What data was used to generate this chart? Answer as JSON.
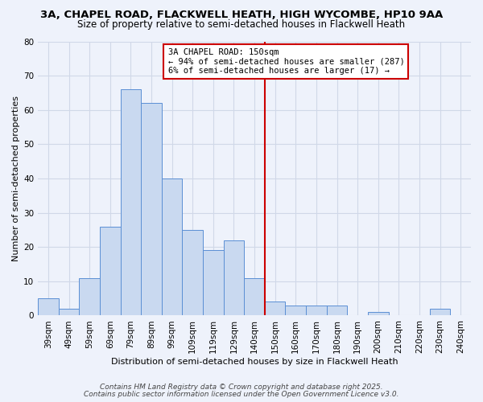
{
  "title1": "3A, CHAPEL ROAD, FLACKWELL HEATH, HIGH WYCOMBE, HP10 9AA",
  "title2": "Size of property relative to semi-detached houses in Flackwell Heath",
  "xlabel": "Distribution of semi-detached houses by size in Flackwell Heath",
  "ylabel": "Number of semi-detached properties",
  "bar_labels": [
    "39sqm",
    "49sqm",
    "59sqm",
    "69sqm",
    "79sqm",
    "89sqm",
    "99sqm",
    "109sqm",
    "119sqm",
    "129sqm",
    "140sqm",
    "150sqm",
    "160sqm",
    "170sqm",
    "180sqm",
    "190sqm",
    "200sqm",
    "210sqm",
    "220sqm",
    "230sqm",
    "240sqm"
  ],
  "bar_values": [
    5,
    2,
    11,
    26,
    66,
    62,
    40,
    25,
    19,
    22,
    11,
    4,
    3,
    3,
    3,
    0,
    1,
    0,
    0,
    2,
    0
  ],
  "bar_color": "#c9d9f0",
  "bar_edge_color": "#5b8fd4",
  "marker_line_color": "#cc0000",
  "annotation_box_text": "3A CHAPEL ROAD: 150sqm\n← 94% of semi-detached houses are smaller (287)\n6% of semi-detached houses are larger (17) →",
  "annotation_box_facecolor": "#ffffff",
  "annotation_box_edgecolor": "#cc0000",
  "ylim": [
    0,
    80
  ],
  "yticks": [
    0,
    10,
    20,
    30,
    40,
    50,
    60,
    70,
    80
  ],
  "grid_color": "#d0d8e8",
  "background_color": "#eef2fb",
  "footer1": "Contains HM Land Registry data © Crown copyright and database right 2025.",
  "footer2": "Contains public sector information licensed under the Open Government Licence v3.0.",
  "title_fontsize": 9.5,
  "subtitle_fontsize": 8.5,
  "axis_label_fontsize": 8,
  "tick_fontsize": 7.5,
  "annotation_fontsize": 7.5,
  "footer_fontsize": 6.5
}
